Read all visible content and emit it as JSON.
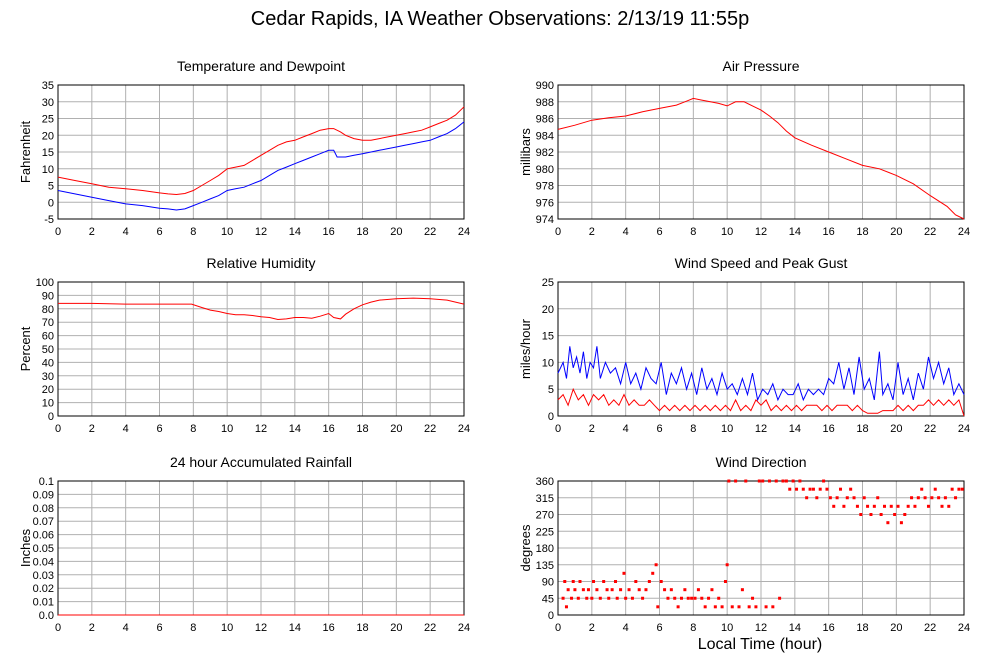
{
  "page": {
    "title": "Cedar Rapids, IA Weather Observations: 2/13/19 11:55p",
    "xlabel": "Local Time (hour)"
  },
  "colors": {
    "red": "#ff0000",
    "blue": "#0000ff",
    "grid": "#b0b0b0"
  },
  "chart_data": [
    {
      "id": "temp",
      "type": "line",
      "title": "Temperature and Dewpoint",
      "xlabel": "",
      "ylabel": "Fahrenheit",
      "xlim": [
        0,
        24
      ],
      "ylim": [
        -5,
        35
      ],
      "xticks": [
        0,
        2,
        4,
        6,
        8,
        10,
        12,
        14,
        16,
        18,
        20,
        22,
        24
      ],
      "yticks": [
        -5,
        0,
        5,
        10,
        15,
        20,
        25,
        30,
        35
      ],
      "grid": true,
      "series": [
        {
          "color": "red",
          "x": [
            0,
            1,
            2,
            3,
            4,
            5,
            6,
            6.5,
            7,
            7.5,
            8,
            8.5,
            9,
            9.5,
            10,
            10.5,
            11,
            11.5,
            12,
            12.5,
            13,
            13.5,
            14,
            14.5,
            15,
            15.5,
            16,
            16.3,
            16.7,
            17,
            17.5,
            18,
            18.5,
            19,
            19.5,
            20,
            20.5,
            21,
            21.5,
            22,
            22.5,
            23,
            23.5,
            24
          ],
          "y": [
            7.5,
            6.5,
            5.5,
            4.5,
            4,
            3.5,
            2.8,
            2.5,
            2.3,
            2.6,
            3.5,
            5,
            6.5,
            8,
            10,
            10.5,
            11,
            12.5,
            14,
            15.5,
            17,
            18,
            18.5,
            19.5,
            20.5,
            21.5,
            22,
            22,
            21,
            20,
            19,
            18.5,
            18.5,
            19,
            19.5,
            20,
            20.5,
            21,
            21.5,
            22.5,
            23.5,
            24.5,
            26,
            28.5
          ]
        },
        {
          "color": "blue",
          "x": [
            0,
            1,
            2,
            3,
            4,
            5,
            6,
            6.5,
            7,
            7.5,
            8,
            8.5,
            9,
            9.5,
            10,
            10.5,
            11,
            11.5,
            12,
            12.5,
            13,
            13.5,
            14,
            14.5,
            15,
            15.5,
            16,
            16.3,
            16.5,
            17,
            17.5,
            18,
            18.5,
            19,
            19.5,
            20,
            20.5,
            21,
            21.5,
            22,
            22.5,
            23,
            23.5,
            24
          ],
          "y": [
            3.5,
            2.5,
            1.5,
            0.5,
            -0.5,
            -1,
            -1.8,
            -2,
            -2.3,
            -2,
            -1,
            0,
            1,
            2,
            3.5,
            4,
            4.5,
            5.5,
            6.5,
            8,
            9.5,
            10.5,
            11.5,
            12.5,
            13.5,
            14.5,
            15.5,
            15.5,
            13.5,
            13.5,
            14,
            14.5,
            15,
            15.5,
            16,
            16.5,
            17,
            17.5,
            18,
            18.5,
            19.5,
            20.5,
            22,
            24
          ]
        }
      ]
    },
    {
      "id": "pres",
      "type": "line",
      "title": "Air Pressure",
      "xlabel": "",
      "ylabel": "millibars",
      "xlim": [
        0,
        24
      ],
      "ylim": [
        974,
        990
      ],
      "xticks": [
        0,
        2,
        4,
        6,
        8,
        10,
        12,
        14,
        16,
        18,
        20,
        22,
        24
      ],
      "yticks": [
        974,
        976,
        978,
        980,
        982,
        984,
        986,
        988,
        990
      ],
      "grid": true,
      "series": [
        {
          "color": "red",
          "x": [
            0,
            1,
            2,
            3,
            4,
            5,
            6,
            7,
            7.5,
            8,
            8.5,
            9,
            9.5,
            10,
            10.5,
            11,
            11.5,
            12,
            12.5,
            13,
            13.5,
            14,
            15,
            16,
            17,
            18,
            19,
            20,
            21,
            22,
            23,
            23.5,
            24
          ],
          "y": [
            984.7,
            985.2,
            985.8,
            986.1,
            986.3,
            986.8,
            987.2,
            987.6,
            988,
            988.4,
            988.2,
            988,
            987.8,
            987.5,
            988,
            988,
            987.5,
            987,
            986.3,
            985.5,
            984.5,
            983.7,
            982.8,
            982,
            981.2,
            980.4,
            980,
            979.2,
            978.2,
            976.8,
            975.5,
            974.5,
            974
          ]
        }
      ]
    },
    {
      "id": "rh",
      "type": "line",
      "title": "Relative Humidity",
      "xlabel": "",
      "ylabel": "Percent",
      "xlim": [
        0,
        24
      ],
      "ylim": [
        0,
        100
      ],
      "xticks": [
        0,
        2,
        4,
        6,
        8,
        10,
        12,
        14,
        16,
        18,
        20,
        22,
        24
      ],
      "yticks": [
        0,
        10,
        20,
        30,
        40,
        50,
        60,
        70,
        80,
        90,
        100
      ],
      "grid": true,
      "series": [
        {
          "color": "red",
          "x": [
            0,
            2,
            4,
            6,
            7,
            7.9,
            8.5,
            9,
            9.5,
            10,
            10.5,
            11,
            11.5,
            12,
            12.5,
            13,
            13.5,
            14,
            14.5,
            15,
            15.5,
            16,
            16.3,
            16.7,
            17,
            17.5,
            18,
            18.5,
            19,
            20,
            21,
            22,
            23,
            24
          ],
          "y": [
            84,
            84,
            83.5,
            83.5,
            83.5,
            83.5,
            81,
            79,
            78,
            76.5,
            75.5,
            75.5,
            75,
            74,
            73.5,
            72,
            72.5,
            73.5,
            73.5,
            73,
            74.5,
            76.5,
            73.5,
            72.5,
            76,
            80,
            83,
            85,
            86.5,
            87.5,
            88,
            87.5,
            86.5,
            83.5
          ]
        }
      ]
    },
    {
      "id": "wind",
      "type": "line",
      "title": "Wind Speed and Peak Gust",
      "xlabel": "",
      "ylabel": "miles/hour",
      "xlim": [
        0,
        24
      ],
      "ylim": [
        0,
        25
      ],
      "xticks": [
        0,
        2,
        4,
        6,
        8,
        10,
        12,
        14,
        16,
        18,
        20,
        22,
        24
      ],
      "yticks": [
        0,
        5,
        10,
        15,
        20,
        25
      ],
      "grid": true,
      "series": [
        {
          "color": "blue",
          "x": [
            0,
            0.3,
            0.5,
            0.7,
            0.9,
            1.1,
            1.3,
            1.5,
            1.7,
            1.9,
            2.1,
            2.3,
            2.5,
            2.8,
            3.1,
            3.4,
            3.7,
            4,
            4.3,
            4.6,
            4.9,
            5.2,
            5.5,
            5.8,
            6.1,
            6.4,
            6.7,
            7,
            7.3,
            7.6,
            7.9,
            8.2,
            8.5,
            8.8,
            9.1,
            9.4,
            9.7,
            10,
            10.3,
            10.6,
            10.9,
            11.2,
            11.5,
            11.8,
            12.1,
            12.4,
            12.7,
            13,
            13.3,
            13.6,
            13.9,
            14.2,
            14.5,
            14.8,
            15.1,
            15.4,
            15.7,
            16,
            16.3,
            16.6,
            16.9,
            17.2,
            17.5,
            17.8,
            18.1,
            18.4,
            18.7,
            19,
            19.2,
            19.5,
            19.8,
            20.1,
            20.4,
            20.7,
            21,
            21.3,
            21.6,
            21.9,
            22.2,
            22.5,
            22.8,
            23.1,
            23.4,
            23.7,
            24
          ],
          "y": [
            8,
            10,
            7,
            13,
            9,
            11,
            8,
            12,
            7,
            10,
            9,
            13,
            7,
            10,
            8,
            9,
            6,
            10,
            6,
            8,
            5,
            9,
            7,
            6,
            10,
            4,
            8,
            6,
            9,
            5,
            8,
            4,
            9,
            5,
            7,
            4,
            8,
            5,
            6,
            4,
            7,
            4,
            8,
            3,
            5,
            4,
            6,
            3,
            5,
            4,
            4,
            6,
            3,
            5,
            4,
            5,
            4,
            7,
            6,
            10,
            5,
            9,
            4,
            11,
            5,
            7,
            3,
            12,
            4,
            6,
            3,
            10,
            4,
            7,
            3,
            8,
            5,
            11,
            7,
            10,
            6,
            9,
            4,
            6,
            4
          ]
        },
        {
          "color": "red",
          "x": [
            0,
            0.3,
            0.6,
            0.9,
            1.2,
            1.5,
            1.8,
            2.1,
            2.4,
            2.7,
            3,
            3.3,
            3.6,
            3.9,
            4.2,
            4.5,
            4.8,
            5.1,
            5.4,
            5.7,
            6,
            6.3,
            6.6,
            6.9,
            7.2,
            7.5,
            7.8,
            8.1,
            8.4,
            8.7,
            9,
            9.3,
            9.6,
            9.9,
            10.2,
            10.5,
            10.8,
            11.1,
            11.4,
            11.7,
            12,
            12.3,
            12.6,
            12.9,
            13.2,
            13.5,
            13.8,
            14.1,
            14.4,
            14.7,
            15,
            15.3,
            15.6,
            15.9,
            16.2,
            16.5,
            16.8,
            17.1,
            17.4,
            17.7,
            18,
            18.3,
            18.6,
            18.9,
            19.2,
            19.5,
            19.8,
            20.1,
            20.4,
            20.7,
            21,
            21.3,
            21.6,
            21.9,
            22.2,
            22.5,
            22.8,
            23.1,
            23.4,
            23.7,
            24
          ],
          "y": [
            3,
            4,
            2,
            5,
            3,
            4,
            2,
            4,
            3,
            4,
            2,
            3,
            2,
            4,
            2,
            3,
            2,
            2,
            3,
            2,
            1,
            2,
            1,
            2,
            1,
            2,
            1,
            2,
            1,
            2,
            1,
            2,
            1,
            2,
            1,
            3,
            1,
            2,
            1,
            3,
            2,
            3,
            1,
            2,
            1,
            2,
            1,
            2,
            1,
            2,
            2,
            2,
            1,
            2,
            1,
            2,
            2,
            2,
            1,
            2,
            1,
            0.5,
            0.5,
            0.5,
            1,
            1,
            1,
            2,
            1,
            2,
            1,
            2,
            2,
            3,
            2,
            3,
            2,
            3,
            2,
            3,
            0
          ]
        }
      ]
    },
    {
      "id": "rain",
      "type": "line",
      "title": "24 hour Accumulated Rainfall",
      "xlabel": "",
      "ylabel": "Inches",
      "xlim": [
        0,
        24
      ],
      "ylim": [
        0,
        0.1
      ],
      "xticks": [
        0,
        2,
        4,
        6,
        8,
        10,
        12,
        14,
        16,
        18,
        20,
        22,
        24
      ],
      "yticks": [
        0.0,
        0.01,
        0.02,
        0.03,
        0.04,
        0.05,
        0.06,
        0.07,
        0.08,
        0.09,
        0.1
      ],
      "yticklabels": [
        "0.0",
        "0.01",
        "0.02",
        "0.03",
        "0.04",
        "0.05",
        "0.06",
        "0.07",
        "0.08",
        "0.09",
        "0.1"
      ],
      "grid": true,
      "series": [
        {
          "color": "red",
          "x": [
            0,
            24
          ],
          "y": [
            0,
            0
          ]
        }
      ]
    },
    {
      "id": "dir",
      "type": "scatter",
      "title": "Wind Direction",
      "xlabel": "Local Time (hour)",
      "ylabel": "degrees",
      "xlim": [
        0,
        24
      ],
      "ylim": [
        0,
        360
      ],
      "xticks": [
        0,
        2,
        4,
        6,
        8,
        10,
        12,
        14,
        16,
        18,
        20,
        22,
        24
      ],
      "yticks": [
        0,
        45,
        90,
        135,
        180,
        225,
        270,
        315,
        360
      ],
      "grid": true,
      "series": [
        {
          "color": "red",
          "x": [
            0.3,
            0.4,
            0.5,
            0.6,
            0.8,
            0.9,
            1.0,
            1.2,
            1.3,
            1.5,
            1.7,
            1.8,
            2.0,
            2.1,
            2.3,
            2.5,
            2.7,
            2.9,
            3.0,
            3.2,
            3.4,
            3.5,
            3.7,
            3.9,
            4.0,
            4.2,
            4.4,
            4.6,
            4.8,
            5.0,
            5.2,
            5.4,
            5.6,
            5.8,
            5.9,
            6.1,
            6.3,
            6.5,
            6.7,
            6.9,
            7.1,
            7.3,
            7.5,
            7.7,
            7.9,
            8.1,
            8.3,
            8.5,
            8.7,
            8.9,
            9.1,
            9.3,
            9.5,
            9.7,
            9.9,
            10.0,
            10.1,
            10.3,
            10.5,
            10.7,
            10.9,
            11.1,
            11.3,
            11.5,
            11.7,
            11.9,
            12.1,
            12.3,
            12.5,
            12.7,
            12.9,
            13.1,
            13.3,
            13.5,
            13.7,
            13.9,
            14.1,
            14.3,
            14.5,
            14.7,
            14.9,
            15.1,
            15.3,
            15.5,
            15.7,
            15.9,
            16.1,
            16.3,
            16.5,
            16.7,
            16.9,
            17.1,
            17.3,
            17.5,
            17.7,
            17.9,
            18.1,
            18.3,
            18.5,
            18.7,
            18.9,
            19.1,
            19.3,
            19.5,
            19.7,
            19.9,
            20.1,
            20.3,
            20.5,
            20.7,
            20.9,
            21.1,
            21.3,
            21.5,
            21.7,
            21.9,
            22.1,
            22.3,
            22.5,
            22.7,
            22.9,
            23.1,
            23.3,
            23.5,
            23.7,
            23.9
          ],
          "y": [
            45,
            90,
            22,
            68,
            45,
            90,
            68,
            45,
            90,
            68,
            45,
            68,
            45,
            90,
            68,
            45,
            90,
            68,
            45,
            68,
            90,
            45,
            68,
            112,
            45,
            68,
            45,
            90,
            68,
            45,
            68,
            90,
            112,
            135,
            22,
            90,
            68,
            45,
            68,
            45,
            22,
            45,
            68,
            45,
            45,
            45,
            68,
            45,
            22,
            45,
            68,
            22,
            45,
            22,
            90,
            135,
            360,
            22,
            360,
            22,
            68,
            360,
            22,
            45,
            22,
            360,
            360,
            22,
            360,
            22,
            360,
            45,
            360,
            360,
            338,
            360,
            338,
            360,
            338,
            315,
            338,
            338,
            315,
            338,
            360,
            338,
            315,
            292,
            315,
            338,
            292,
            315,
            338,
            315,
            292,
            270,
            315,
            292,
            270,
            292,
            315,
            270,
            292,
            248,
            292,
            270,
            292,
            248,
            270,
            292,
            315,
            292,
            315,
            338,
            315,
            292,
            315,
            338,
            315,
            292,
            315,
            292,
            338,
            315,
            338,
            338
          ]
        }
      ]
    }
  ]
}
